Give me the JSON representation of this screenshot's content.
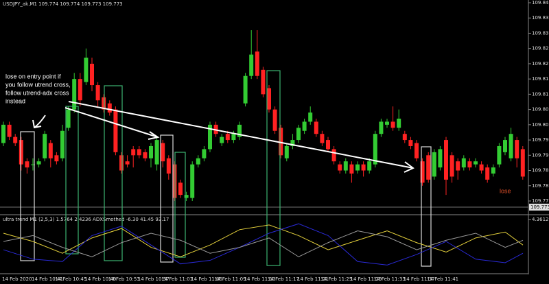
{
  "chart_data": [
    {
      "type": "candlestick",
      "title": "USDJPY_ak,M1  109.774 109.774 109.773 109.773",
      "annotations": [
        "lose on entry point if",
        "you follow utrend cross,",
        "follow utrend-adx cross",
        "instead",
        "lose"
      ],
      "up_color": "#33cc33",
      "down_color": "#ff2222",
      "categories": [
        "14 Feb 2020",
        null,
        null,
        null,
        null,
        "14 Feb 10:41",
        null,
        null,
        null,
        "14 Feb 10:45",
        null,
        null,
        null,
        null,
        "14 Feb 10:49",
        null,
        null,
        null,
        "14 Feb 10:53",
        null,
        null,
        null,
        null,
        "14 Feb 10:57",
        null,
        null,
        null,
        "14 Feb 11:01",
        null,
        null,
        null,
        null,
        "14 Feb 11:05",
        null,
        null,
        null,
        "14 Feb 11:09",
        null,
        null,
        null,
        null,
        "14 Feb 11:13",
        null,
        null,
        null,
        "14 Feb 11:17",
        null,
        null,
        null,
        null,
        "14 Feb 11:21",
        null,
        null,
        null,
        "14 Feb 11:25",
        null,
        null,
        null,
        null,
        "14 Feb 11:29",
        null,
        null,
        null,
        "14 Feb 11:33",
        null,
        null,
        null,
        null,
        "14 Feb 11:37",
        null,
        null,
        null,
        "14 Feb 11:41",
        null,
        null,
        null,
        null,
        null,
        null,
        null,
        null,
        null,
        null,
        null,
        null,
        null,
        null,
        null,
        null
      ],
      "open": [
        109.794,
        109.8,
        109.796,
        109.795,
        109.788,
        109.787,
        109.787,
        109.789,
        109.794,
        109.79,
        109.789,
        109.799,
        109.805,
        109.815,
        109.814,
        109.82,
        109.813,
        109.809,
        109.807,
        109.805,
        109.79,
        109.788,
        109.792,
        109.792,
        109.791,
        109.789,
        109.787,
        109.794,
        109.789,
        109.787,
        109.781,
        109.776,
        109.776,
        109.787,
        109.789,
        109.792,
        109.8,
        109.794,
        109.797,
        109.795,
        109.796,
        109.807,
        109.816,
        109.824,
        109.818,
        109.812,
        109.805,
        109.799,
        109.789,
        109.793,
        109.795,
        109.798,
        109.801,
        109.801,
        109.797,
        109.795,
        109.792,
        109.787,
        109.785,
        109.787,
        109.785,
        109.787,
        109.785,
        109.787,
        109.797,
        109.8,
        109.801,
        109.799,
        109.797,
        109.795,
        109.794,
        109.788,
        109.79,
        109.783,
        109.786,
        109.795,
        109.79,
        109.788,
        109.786,
        109.788,
        109.787,
        109.787,
        109.786,
        109.784,
        109.787,
        109.791,
        109.789,
        109.795,
        109.792
      ],
      "high": [
        109.801,
        109.801,
        109.797,
        109.796,
        109.789,
        109.789,
        109.789,
        109.798,
        109.795,
        109.791,
        109.8,
        109.806,
        109.817,
        109.817,
        109.825,
        109.822,
        109.814,
        109.81,
        109.808,
        109.806,
        109.791,
        109.79,
        109.793,
        109.793,
        109.792,
        109.794,
        109.796,
        109.795,
        109.79,
        109.788,
        109.782,
        109.778,
        109.788,
        109.79,
        109.793,
        109.801,
        109.801,
        109.797,
        109.798,
        109.798,
        109.801,
        109.817,
        109.831,
        109.831,
        109.819,
        109.813,
        109.806,
        109.8,
        109.794,
        109.797,
        109.8,
        109.802,
        109.806,
        109.802,
        109.798,
        109.796,
        109.793,
        109.788,
        109.789,
        109.788,
        109.788,
        109.788,
        109.789,
        109.798,
        109.802,
        109.802,
        109.806,
        109.805,
        109.798,
        109.796,
        109.795,
        109.789,
        109.791,
        109.792,
        109.793,
        109.796,
        109.791,
        109.789,
        109.79,
        109.789,
        109.789,
        109.788,
        109.787,
        109.787,
        109.794,
        109.796,
        109.799,
        109.796,
        109.793
      ],
      "low": [
        109.793,
        109.795,
        109.793,
        109.785,
        109.784,
        109.785,
        109.786,
        109.788,
        109.786,
        109.787,
        109.788,
        109.798,
        109.804,
        109.806,
        109.813,
        109.811,
        109.806,
        109.804,
        109.803,
        109.79,
        109.784,
        109.786,
        109.786,
        109.789,
        109.788,
        109.786,
        109.785,
        109.786,
        109.782,
        109.775,
        109.776,
        109.775,
        109.775,
        109.786,
        109.788,
        109.791,
        109.796,
        109.793,
        109.794,
        109.794,
        109.795,
        109.806,
        109.815,
        109.815,
        109.809,
        109.804,
        109.797,
        109.789,
        109.788,
        109.792,
        109.794,
        109.797,
        109.8,
        109.796,
        109.793,
        109.791,
        109.787,
        109.784,
        109.784,
        109.781,
        109.784,
        109.783,
        109.784,
        109.786,
        109.796,
        109.799,
        109.798,
        109.798,
        109.794,
        109.792,
        109.788,
        109.78,
        109.781,
        109.782,
        109.785,
        109.777,
        109.781,
        109.782,
        109.785,
        109.785,
        109.786,
        109.784,
        109.781,
        109.783,
        109.786,
        109.79,
        109.788,
        109.786,
        109.782
      ],
      "close": [
        109.8,
        109.796,
        109.794,
        109.787,
        109.786,
        109.787,
        109.788,
        109.797,
        109.789,
        109.788,
        109.798,
        109.805,
        109.815,
        109.808,
        109.822,
        109.813,
        109.808,
        109.805,
        109.804,
        109.791,
        109.785,
        109.787,
        109.79,
        109.79,
        109.789,
        109.793,
        109.795,
        109.788,
        109.784,
        109.776,
        109.777,
        109.777,
        109.787,
        109.789,
        109.792,
        109.8,
        109.797,
        109.796,
        109.795,
        109.797,
        109.8,
        109.816,
        109.823,
        109.816,
        109.81,
        109.805,
        109.798,
        109.79,
        109.793,
        109.795,
        109.799,
        109.801,
        109.804,
        109.797,
        109.794,
        109.792,
        109.788,
        109.785,
        109.788,
        109.784,
        109.787,
        109.785,
        109.788,
        109.797,
        109.801,
        109.801,
        109.799,
        109.802,
        109.795,
        109.793,
        109.789,
        109.781,
        109.782,
        109.791,
        109.792,
        109.782,
        109.783,
        109.785,
        109.789,
        109.786,
        109.788,
        109.785,
        109.782,
        109.786,
        109.793,
        109.795,
        109.797,
        109.789,
        109.783
      ],
      "last_price": {
        "value": 109.773,
        "label": "109.773"
      },
      "ylim": [
        109.775,
        109.84
      ],
      "yticks": [
        {
          "value": 109.84,
          "label": "109.840"
        },
        {
          "value": 109.835,
          "label": "109.835"
        },
        {
          "value": 109.83,
          "label": "109.830"
        },
        {
          "value": 109.825,
          "label": "109.825"
        },
        {
          "value": 109.82,
          "label": "109.820"
        },
        {
          "value": 109.815,
          "label": "109.815"
        },
        {
          "value": 109.81,
          "label": "109.810"
        },
        {
          "value": 109.805,
          "label": "109.805"
        },
        {
          "value": 109.8,
          "label": "109.800"
        },
        {
          "value": 109.795,
          "label": "109.795"
        },
        {
          "value": 109.79,
          "label": "109.790"
        },
        {
          "value": 109.785,
          "label": "109.785"
        },
        {
          "value": 109.78,
          "label": "109.780"
        },
        {
          "value": 109.775,
          "label": "109.775"
        }
      ]
    },
    {
      "type": "line",
      "title": "ultra trend M1 (2,5,3) 1.5764 2.4236  ADXSmothed -6.30 41.45 93.17",
      "x": [
        0,
        5,
        10,
        15,
        20,
        25,
        30,
        35,
        40,
        45,
        50,
        55,
        60,
        65,
        70,
        75,
        80,
        85,
        88
      ],
      "xlim": [
        0,
        88
      ],
      "ylim": [
        0,
        4.3612
      ],
      "yticks": [
        4.3612
      ],
      "series": [
        {
          "color": "#e6d23c",
          "values": [
            3.2,
            2.5,
            1.5,
            2.8,
            3.6,
            2.0,
            1.2,
            2.2,
            3.5,
            3.9,
            3.0,
            1.8,
            2.6,
            3.4,
            2.4,
            1.6,
            2.8,
            3.3,
            2.2
          ]
        },
        {
          "color": "#2a2ad8",
          "values": [
            1.8,
            1.0,
            0.8,
            3.0,
            3.8,
            2.2,
            0.6,
            0.9,
            2.0,
            3.2,
            4.0,
            3.0,
            0.8,
            0.5,
            1.4,
            2.5,
            1.0,
            0.7,
            1.5
          ]
        },
        {
          "color": "#9a9a9a",
          "values": [
            2.5,
            3.0,
            2.0,
            1.2,
            2.4,
            3.2,
            2.6,
            1.5,
            2.0,
            2.8,
            1.2,
            2.4,
            3.4,
            2.9,
            1.8,
            2.6,
            3.2,
            2.0,
            2.6
          ]
        }
      ]
    }
  ]
}
